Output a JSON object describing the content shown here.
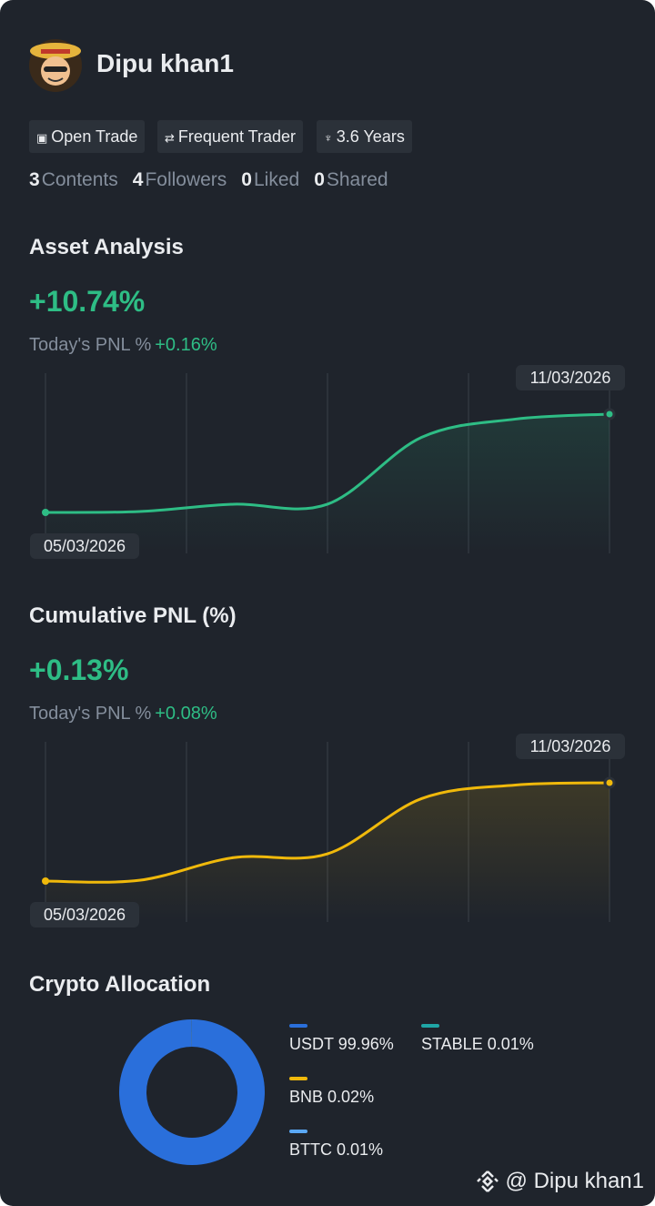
{
  "profile": {
    "name": "Dipu khan1",
    "tags": [
      "Open Trade",
      "Frequent Trader",
      "3.6 Years"
    ],
    "stats": [
      {
        "count": 3,
        "label": "Contents"
      },
      {
        "count": 4,
        "label": "Followers"
      },
      {
        "count": 0,
        "label": "Liked"
      },
      {
        "count": 0,
        "label": "Shared"
      }
    ]
  },
  "chart_data": [
    {
      "type": "line",
      "title": "Asset Analysis",
      "headline": "+10.74%",
      "subtitle_label": "Today's PNL %",
      "subtitle_value": "+0.16%",
      "x": [
        "05/03/2026",
        null,
        null,
        null,
        null,
        null,
        "11/03/2026"
      ],
      "series": [
        {
          "color": "#2ebd85",
          "values": [
            0,
            0.1,
            0.9,
            0.9,
            8.2,
            10.2,
            10.74
          ]
        }
      ]
    },
    {
      "type": "line",
      "title": "Cumulative PNL (%)",
      "headline": "+0.13%",
      "subtitle_label": "Today's PNL %",
      "subtitle_value": "+0.08%",
      "x": [
        "05/03/2026",
        null,
        null,
        null,
        null,
        null,
        "11/03/2026"
      ],
      "series": [
        {
          "color": "#f0b90b",
          "values": [
            0,
            0.001,
            0.031,
            0.036,
            0.109,
            0.127,
            0.13
          ]
        }
      ]
    },
    {
      "type": "pie",
      "title": "Crypto Allocation",
      "categories": [
        "USDT",
        "STABLE",
        "BNB",
        "BTTC"
      ],
      "values": [
        99.96,
        0.01,
        0.02,
        0.01
      ],
      "value_labels": [
        "99.96%",
        "0.01%",
        "0.02%",
        "0.01%"
      ],
      "colors": [
        "#2a6fdb",
        "#1fa6a6",
        "#f0b90b",
        "#5aa8f5"
      ]
    }
  ],
  "watermark": "@ Dipu khan1"
}
